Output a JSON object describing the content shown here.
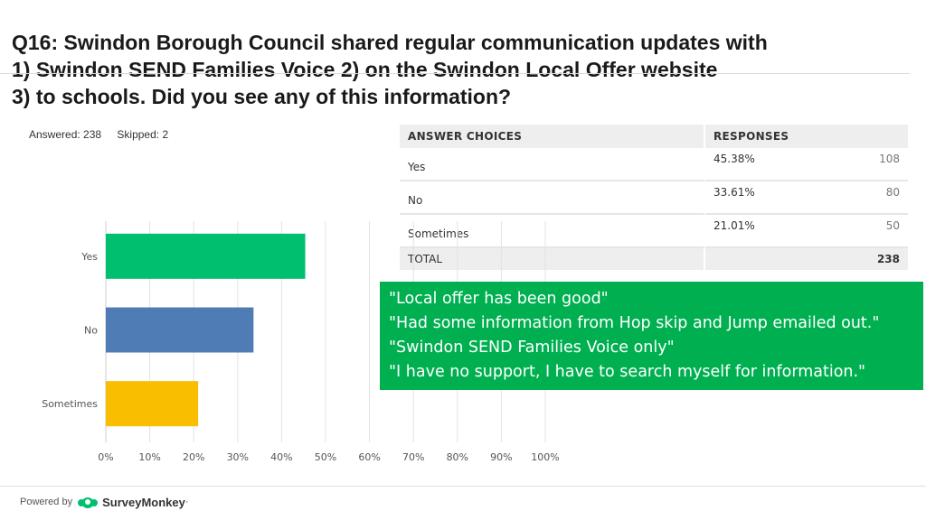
{
  "question": {
    "lines": [
      "Q16: Swindon Borough Council shared regular communication updates with",
      "1) Swindon SEND Families Voice 2) on the Swindon Local Offer website",
      "3) to schools. Did you see any of this information?"
    ]
  },
  "stats": {
    "answered": "Answered: 238",
    "skipped": "Skipped: 2"
  },
  "table": {
    "headers": [
      "ANSWER CHOICES",
      "RESPONSES"
    ],
    "rows": [
      {
        "choice": "Yes",
        "percent": "45.38%",
        "count": "108"
      },
      {
        "choice": "No",
        "percent": "33.61%",
        "count": "80"
      },
      {
        "choice": "Sometimes",
        "percent": "21.01%",
        "count": "50"
      }
    ],
    "total_label": "TOTAL",
    "total_count": "238"
  },
  "quotes": [
    "\"Local offer has been good\"",
    "\"Had some information from Hop skip and Jump emailed out.\"",
    "\"Swindon SEND Families Voice only\"",
    "\"I have no support, I have to search myself for information.\""
  ],
  "footer": {
    "powered_by": "Powered by",
    "brand": "SurveyMonkey",
    "brand_mark": "·"
  },
  "colors": {
    "yes": "#00bf6f",
    "no": "#507cb6",
    "sometimes": "#f9be00",
    "quote_bg": "#00b050"
  },
  "chart_data": {
    "type": "bar",
    "orientation": "horizontal",
    "categories": [
      "Yes",
      "No",
      "Sometimes"
    ],
    "values": [
      45.38,
      33.61,
      21.01
    ],
    "xlim": [
      0,
      100
    ],
    "xticks": [
      "0%",
      "10%",
      "20%",
      "30%",
      "40%",
      "50%",
      "60%",
      "70%",
      "80%",
      "90%",
      "100%"
    ],
    "grid": true
  }
}
